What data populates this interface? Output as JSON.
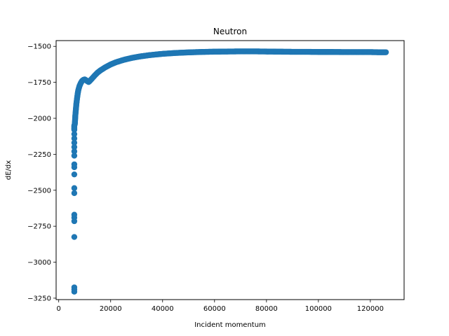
{
  "chart_data": {
    "type": "scatter",
    "title": "Neutron",
    "xlabel": "Incident momentum",
    "ylabel": "dE/dx",
    "xlim": [
      -1000,
      133000
    ],
    "ylim": [
      -3260,
      -1460
    ],
    "xticks": [
      0,
      20000,
      40000,
      60000,
      80000,
      100000,
      120000
    ],
    "xtick_labels": [
      "0",
      "20000",
      "40000",
      "60000",
      "80000",
      "100000",
      "120000"
    ],
    "yticks": [
      -1500,
      -1750,
      -2000,
      -2250,
      -2500,
      -2750,
      -3000,
      -3250
    ],
    "ytick_labels": [
      "−1500",
      "−1750",
      "−2000",
      "−2250",
      "−2500",
      "−2750",
      "−3000",
      "−3250"
    ],
    "grid": false,
    "series": [
      {
        "color": "#1f77b4",
        "points": [
          [
            6000,
            -3205
          ],
          [
            6000,
            -3190
          ],
          [
            6000,
            -3175
          ],
          [
            6000,
            -2825
          ],
          [
            6000,
            -2715
          ],
          [
            6000,
            -2690
          ],
          [
            6000,
            -2670
          ],
          [
            6000,
            -2520
          ],
          [
            6000,
            -2485
          ],
          [
            6000,
            -2390
          ],
          [
            6000,
            -2340
          ],
          [
            6000,
            -2320
          ],
          [
            6000,
            -2260
          ],
          [
            6000,
            -2230
          ],
          [
            6000,
            -2200
          ],
          [
            6000,
            -2170
          ],
          [
            6000,
            -2140
          ],
          [
            6000,
            -2110
          ],
          [
            6000,
            -2080
          ],
          [
            6000,
            -2050
          ],
          [
            6200,
            -2040
          ],
          [
            6400,
            -1980
          ],
          [
            6600,
            -1940
          ],
          [
            6800,
            -1900
          ],
          [
            7000,
            -1870
          ],
          [
            7300,
            -1830
          ],
          [
            7600,
            -1800
          ],
          [
            8000,
            -1775
          ],
          [
            8500,
            -1755
          ],
          [
            9000,
            -1740
          ],
          [
            9500,
            -1733
          ],
          [
            10000,
            -1730
          ],
          [
            10500,
            -1735
          ],
          [
            11000,
            -1742
          ],
          [
            11500,
            -1748
          ],
          [
            12000,
            -1740
          ],
          [
            13000,
            -1720
          ],
          [
            14000,
            -1700
          ],
          [
            15000,
            -1682
          ],
          [
            16000,
            -1668
          ],
          [
            18000,
            -1645
          ],
          [
            20000,
            -1626
          ],
          [
            22000,
            -1611
          ],
          [
            25000,
            -1594
          ],
          [
            28000,
            -1581
          ],
          [
            31000,
            -1571
          ],
          [
            35000,
            -1561
          ],
          [
            40000,
            -1552
          ],
          [
            45000,
            -1546
          ],
          [
            50000,
            -1542
          ],
          [
            55000,
            -1539
          ],
          [
            60000,
            -1537
          ],
          [
            65000,
            -1536
          ],
          [
            70000,
            -1535
          ],
          [
            75000,
            -1535
          ],
          [
            80000,
            -1536
          ],
          [
            85000,
            -1537
          ],
          [
            90000,
            -1538
          ],
          [
            95000,
            -1538
          ],
          [
            100000,
            -1539
          ],
          [
            105000,
            -1539
          ],
          [
            110000,
            -1540
          ],
          [
            115000,
            -1540
          ],
          [
            120000,
            -1540
          ],
          [
            123000,
            -1541
          ],
          [
            126000,
            -1541
          ]
        ]
      }
    ]
  }
}
